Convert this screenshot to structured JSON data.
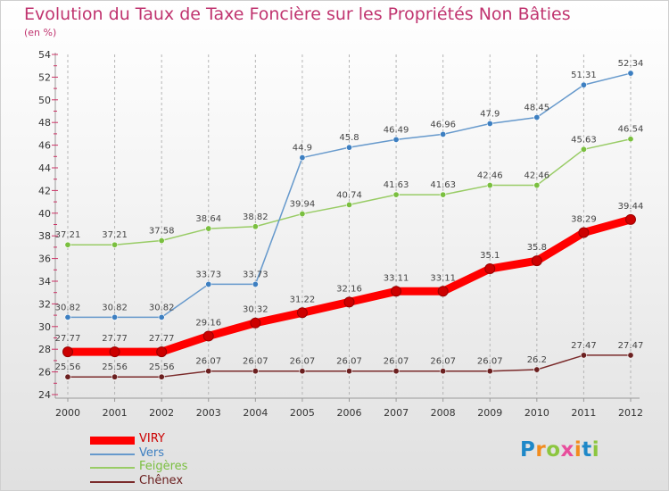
{
  "title": "Evolution du Taux de Taxe Foncière sur les Propriétés Non Bâties",
  "unit_label": "(en %)",
  "brand": "Proxiti",
  "brand_letters": [
    {
      "ch": "P",
      "color": "#1e88c8"
    },
    {
      "ch": "r",
      "color": "#f28c1e"
    },
    {
      "ch": "o",
      "color": "#8cc63f"
    },
    {
      "ch": "x",
      "color": "#e84d9c"
    },
    {
      "ch": "i",
      "color": "#f28c1e"
    },
    {
      "ch": "t",
      "color": "#1e88c8"
    },
    {
      "ch": "i",
      "color": "#8cc63f"
    }
  ],
  "chart_data": {
    "type": "line",
    "title": "Evolution du Taux de Taxe Foncière sur les Propriétés Non Bâties",
    "ylabel": "(en %)",
    "xlabel": "",
    "ylim": [
      24,
      54
    ],
    "yticks": [
      24,
      26,
      28,
      30,
      32,
      34,
      36,
      38,
      40,
      42,
      44,
      46,
      48,
      50,
      52,
      54
    ],
    "grid": "vertical dashed",
    "legend": "bottom-left",
    "x": [
      "2000",
      "2001",
      "2002",
      "2003",
      "2004",
      "2005",
      "2006",
      "2007",
      "2008",
      "2009",
      "2010",
      "2011",
      "2012"
    ],
    "series": [
      {
        "name": "VIRY",
        "color": "#ff0000",
        "width": 9,
        "dot": "#cc0000",
        "values": [
          27.77,
          27.77,
          27.77,
          29.16,
          30.32,
          31.22,
          32.16,
          33.11,
          33.11,
          35.1,
          35.8,
          38.29,
          39.44
        ]
      },
      {
        "name": "Vers",
        "color": "#6699cc",
        "width": 1.5,
        "dot": "#3d7fc1",
        "values": [
          30.82,
          30.82,
          30.82,
          33.73,
          33.73,
          44.9,
          45.8,
          46.49,
          46.96,
          47.9,
          48.45,
          51.31,
          52.34
        ]
      },
      {
        "name": "Feigères",
        "color": "#99cc66",
        "width": 1.5,
        "dot": "#7abf3f",
        "values": [
          37.21,
          37.21,
          37.58,
          38.64,
          38.82,
          39.94,
          40.74,
          41.63,
          41.63,
          42.46,
          42.46,
          45.63,
          46.54
        ]
      },
      {
        "name": "Chênex",
        "color": "#7a2a2a",
        "width": 1.5,
        "dot": "#6b2020",
        "values": [
          25.56,
          25.56,
          25.56,
          26.07,
          26.07,
          26.07,
          26.07,
          26.07,
          26.07,
          26.07,
          26.2,
          27.47,
          27.47
        ]
      }
    ]
  }
}
